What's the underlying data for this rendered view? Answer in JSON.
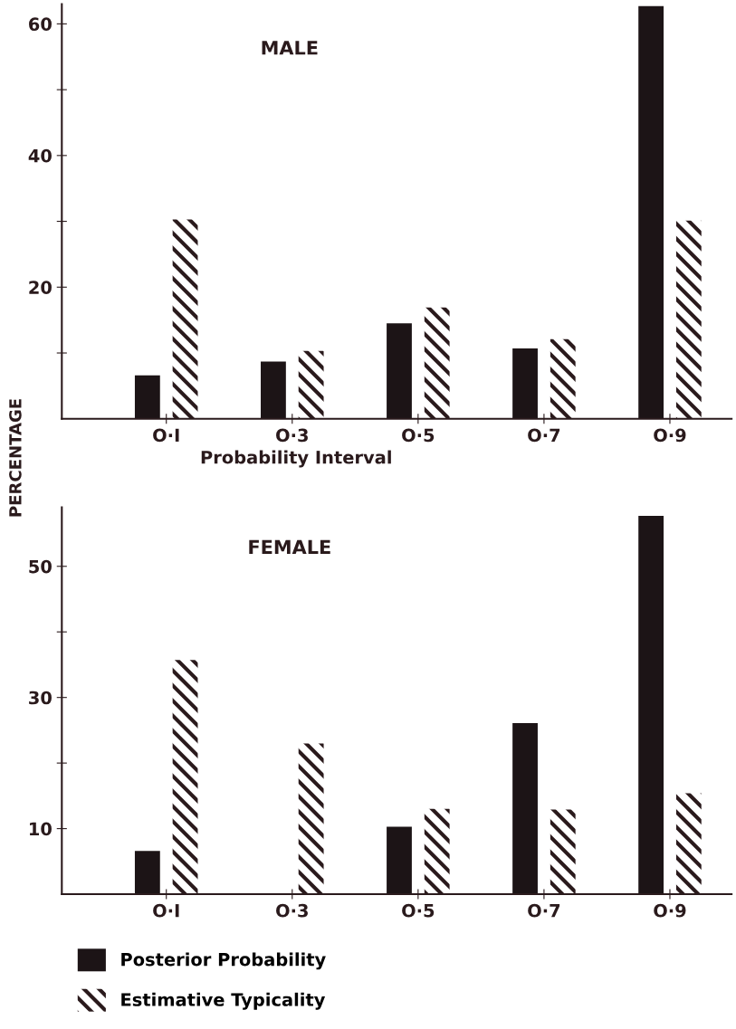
{
  "chart_data": [
    {
      "type": "bar",
      "title": "MALE",
      "xlabel": "Probability Interval",
      "ylabel": "PERCENTAGE",
      "categories": [
        "O·I",
        "O·3",
        "O·5",
        "O·7",
        "O·9"
      ],
      "series": [
        {
          "color": "#1c1416",
          "values": [
            6.6,
            8.7,
            14.5,
            10.7,
            62.7
          ]
        },
        {
          "color": "#2a1a1c",
          "values": [
            30.3,
            10.3,
            16.9,
            12.1,
            30.1
          ]
        }
      ],
      "ylim": [
        0,
        63
      ],
      "yticks": [
        {
          "value": 10,
          "label": null
        },
        20,
        {
          "value": 30,
          "label": null
        },
        40,
        {
          "value": 50,
          "label": null
        },
        60
      ],
      "grid": false,
      "legend": false
    },
    {
      "type": "bar",
      "title": "FEMALE",
      "categories": [
        "O·I",
        "O·3",
        "O·5",
        "O·7",
        "O·9"
      ],
      "series": [
        {
          "name": "Posterior Probability",
          "color": "#1c1416",
          "values": [
            6.6,
            0,
            10.3,
            26.1,
            57.7
          ]
        },
        {
          "name": "Estimative Typicality",
          "color": "#2a1a1c",
          "values": [
            35.7,
            23.0,
            13.0,
            12.9,
            15.4
          ]
        }
      ],
      "ylim": [
        0,
        59
      ],
      "yticks": [
        10,
        {
          "value": 20,
          "label": null
        },
        30,
        {
          "value": 40,
          "label": null
        },
        50
      ],
      "grid": false,
      "legend": "bottom"
    }
  ]
}
